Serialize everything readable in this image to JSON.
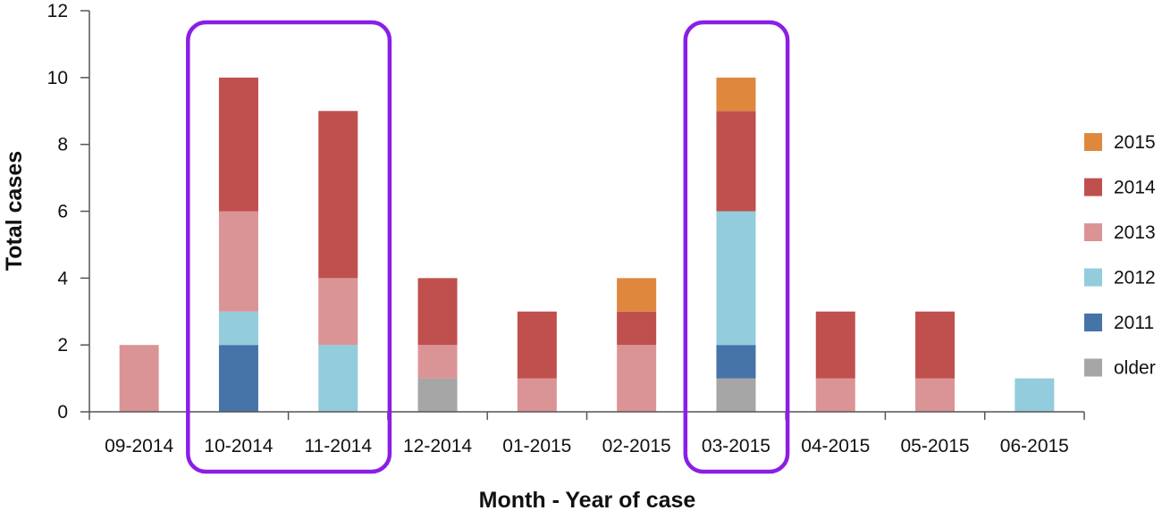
{
  "chart_data": {
    "type": "bar",
    "stacked": true,
    "categories": [
      "09-2014",
      "10-2014",
      "11-2014",
      "12-2014",
      "01-2015",
      "02-2015",
      "03-2015",
      "04-2015",
      "05-2015",
      "06-2015"
    ],
    "series": [
      {
        "name": "older",
        "color": "#a6a6a6",
        "values": [
          0,
          0,
          0,
          1,
          0,
          0,
          1,
          0,
          0,
          0
        ]
      },
      {
        "name": "2011",
        "color": "#4673a8",
        "values": [
          0,
          2,
          0,
          0,
          0,
          0,
          1,
          0,
          0,
          0
        ]
      },
      {
        "name": "2012",
        "color": "#93ccdc",
        "values": [
          0,
          1,
          2,
          0,
          0,
          0,
          4,
          0,
          0,
          1
        ]
      },
      {
        "name": "2013",
        "color": "#db9496",
        "values": [
          2,
          3,
          2,
          1,
          1,
          2,
          0,
          1,
          1,
          0
        ]
      },
      {
        "name": "2014",
        "color": "#c0504d",
        "values": [
          0,
          4,
          5,
          2,
          2,
          1,
          3,
          2,
          2,
          0
        ]
      },
      {
        "name": "2015",
        "color": "#e0873e",
        "values": [
          0,
          0,
          0,
          0,
          0,
          1,
          1,
          0,
          0,
          0
        ]
      }
    ],
    "xlabel": "Month - Year of case",
    "ylabel": "Total cases",
    "ylim": [
      0,
      12
    ],
    "yticks": [
      "0",
      "2",
      "4",
      "6",
      "8",
      "10",
      "12"
    ],
    "grid": false,
    "legend_position": "right",
    "legend_order": [
      "2015",
      "2014",
      "2013",
      "2012",
      "2011",
      "older"
    ],
    "highlight_groups": [
      [
        "10-2014",
        "11-2014"
      ],
      [
        "03-2015"
      ]
    ],
    "highlight_color": "#8b1ee6"
  }
}
